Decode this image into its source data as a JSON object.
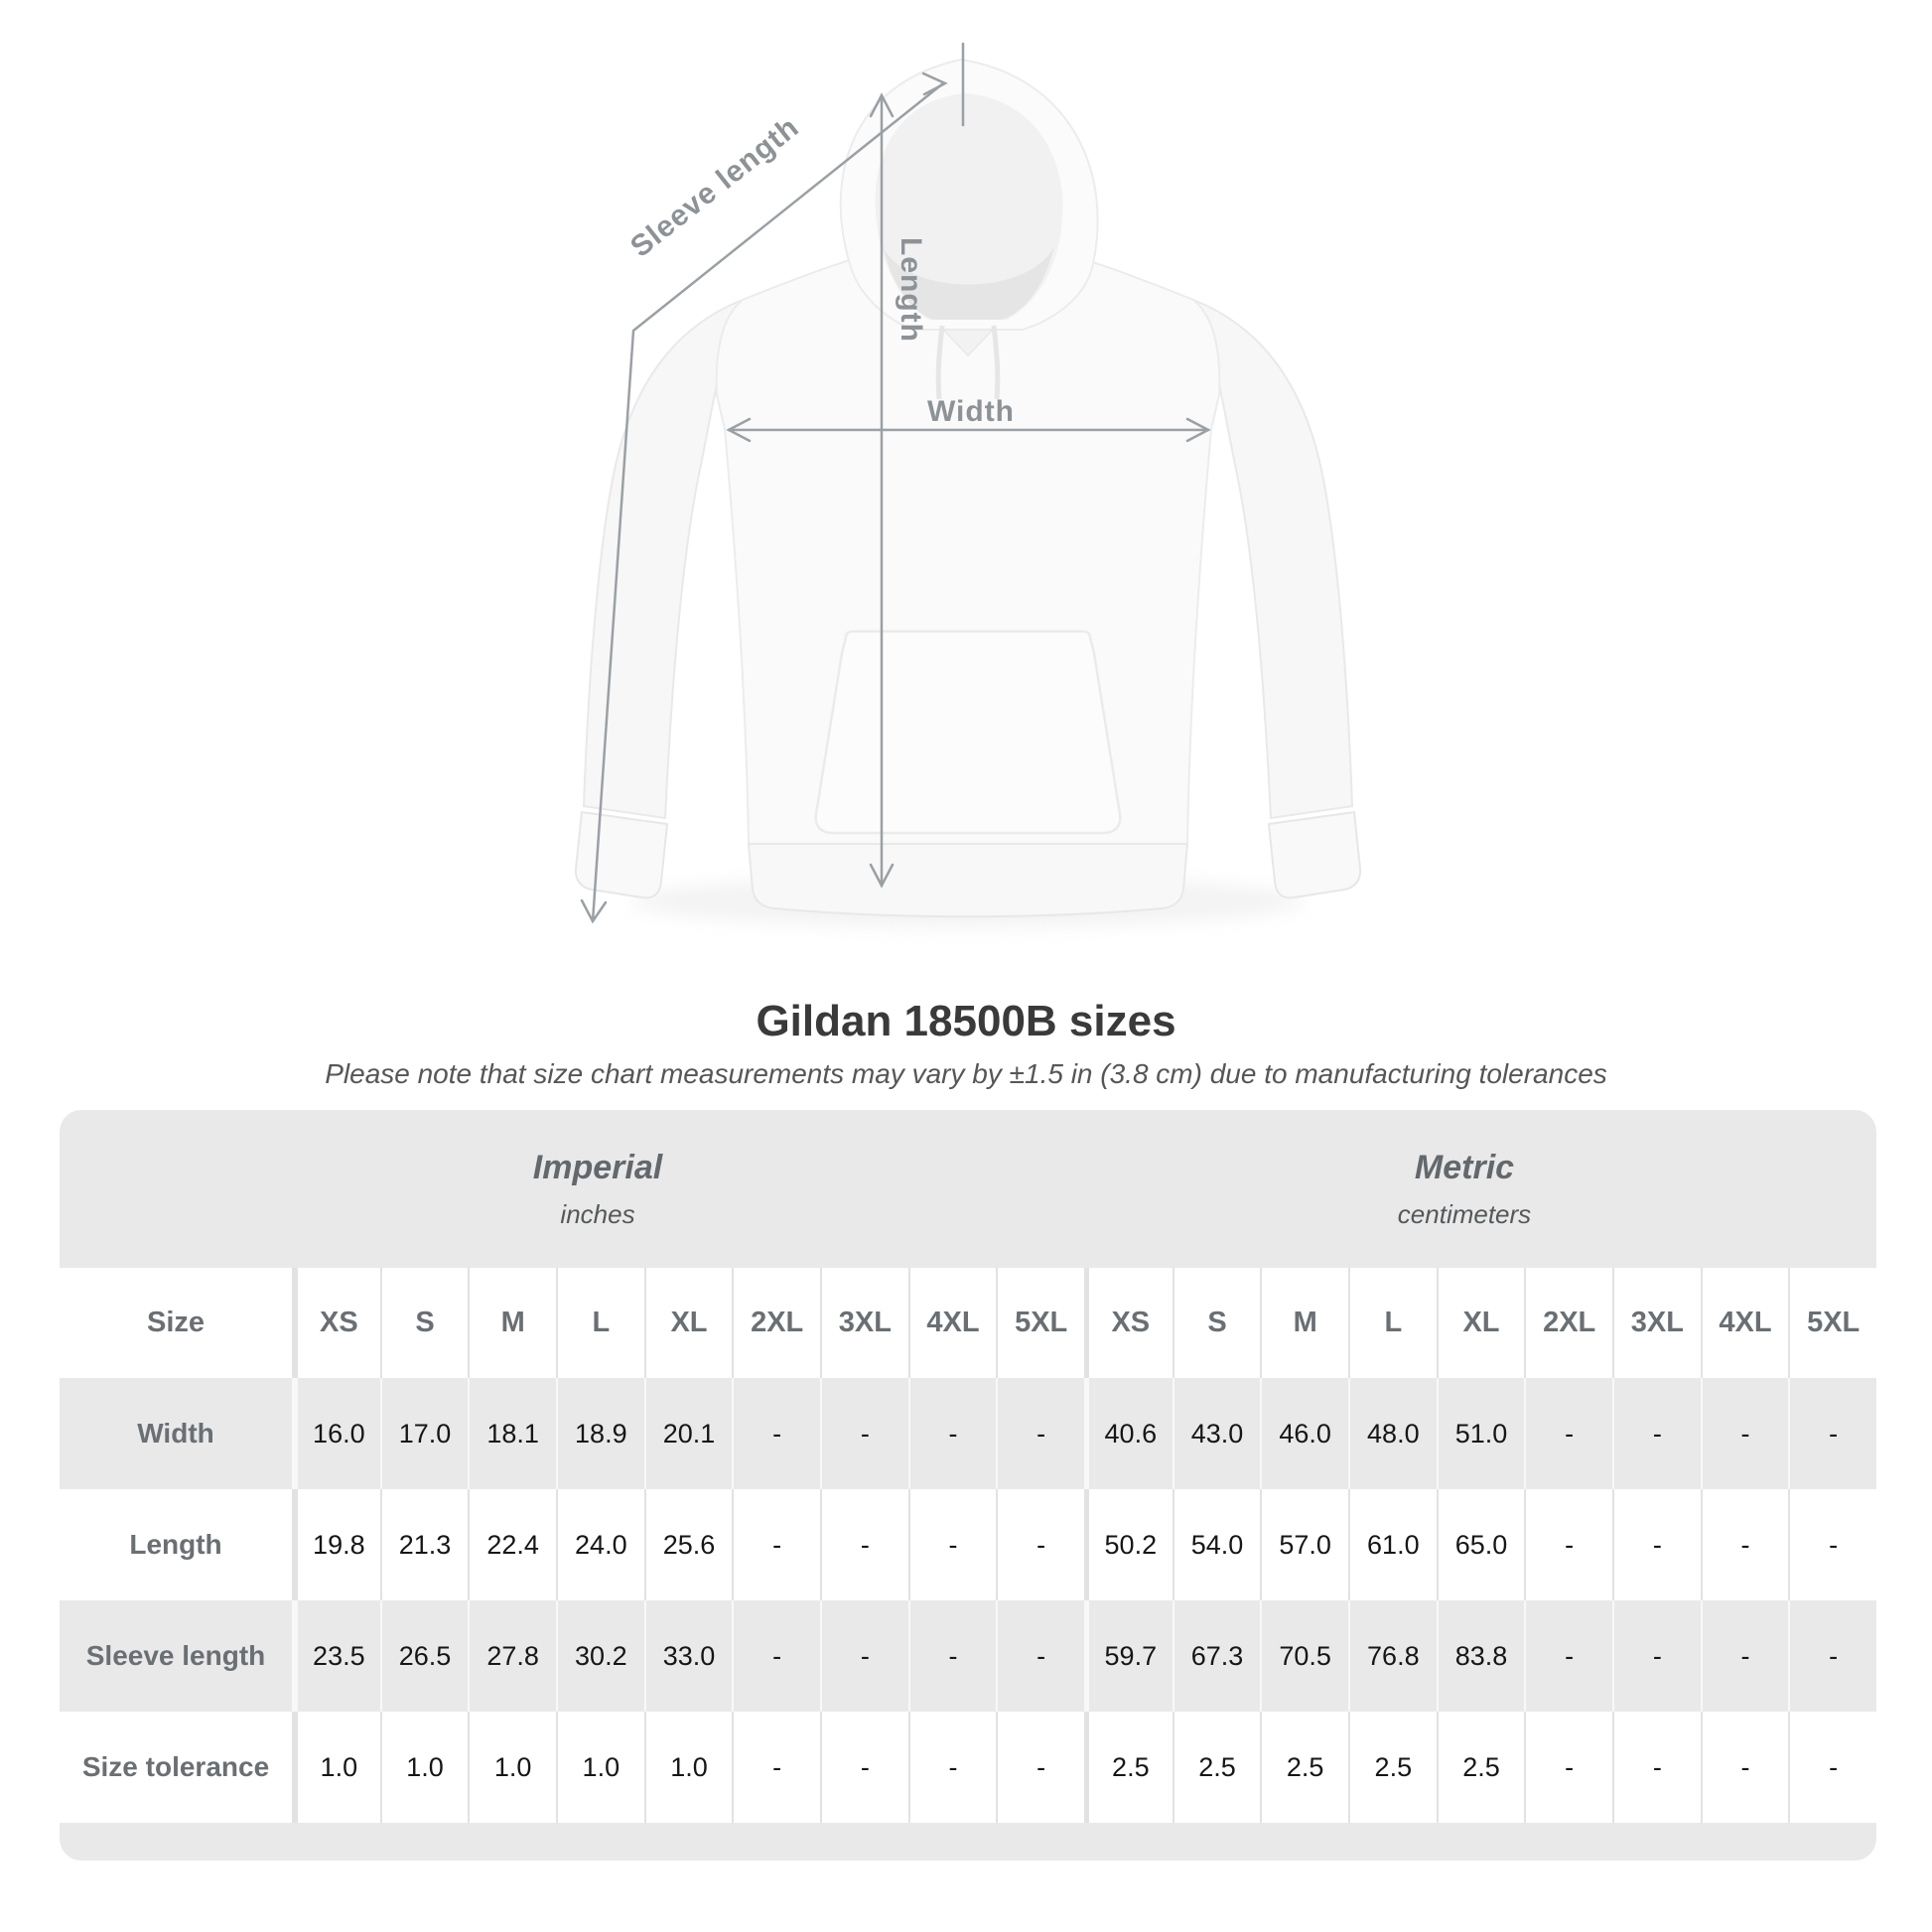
{
  "colors": {
    "row-gray": "#e9e9e9",
    "sep-on-light": "#e2e2e2",
    "sep-on-gray": "#f8f8f8",
    "text-dark": "#161616",
    "label-gray": "#6a6f73",
    "measure-line": "#9aa0a4",
    "measure-text": "#8d9296",
    "title-color": "#3a3a3a"
  },
  "diagram": {
    "sleeve_label": "Sleeve length",
    "length_label": "Length",
    "width_label": "Width"
  },
  "title": "Gildan 18500B sizes",
  "subtitle": "Please note that size chart measurements may vary by ±1.5 in (3.8 cm) due to manufacturing tolerances",
  "chart_data": {
    "type": "table",
    "title": "Gildan 18500B sizes",
    "note": "Please note that size chart measurements may vary by ±1.5 in (3.8 cm) due to manufacturing tolerances",
    "unit_groups": [
      {
        "label": "Imperial",
        "units": "inches"
      },
      {
        "label": "Metric",
        "units": "centimeters"
      }
    ],
    "corner_header": "Size",
    "sizes": [
      "XS",
      "S",
      "M",
      "L",
      "XL",
      "2XL",
      "3XL",
      "4XL",
      "5XL"
    ],
    "measurements": [
      {
        "label": "Width",
        "imperial": [
          "16.0",
          "17.0",
          "18.1",
          "18.9",
          "20.1",
          "-",
          "-",
          "-",
          "-"
        ],
        "metric": [
          "40.6",
          "43.0",
          "46.0",
          "48.0",
          "51.0",
          "-",
          "-",
          "-",
          "-"
        ]
      },
      {
        "label": "Length",
        "imperial": [
          "19.8",
          "21.3",
          "22.4",
          "24.0",
          "25.6",
          "-",
          "-",
          "-",
          "-"
        ],
        "metric": [
          "50.2",
          "54.0",
          "57.0",
          "61.0",
          "65.0",
          "-",
          "-",
          "-",
          "-"
        ]
      },
      {
        "label": "Sleeve length",
        "imperial": [
          "23.5",
          "26.5",
          "27.8",
          "30.2",
          "33.0",
          "-",
          "-",
          "-",
          "-"
        ],
        "metric": [
          "59.7",
          "67.3",
          "70.5",
          "76.8",
          "83.8",
          "-",
          "-",
          "-",
          "-"
        ]
      },
      {
        "label": "Size tolerance",
        "imperial": [
          "1.0",
          "1.0",
          "1.0",
          "1.0",
          "1.0",
          "-",
          "-",
          "-",
          "-"
        ],
        "metric": [
          "2.5",
          "2.5",
          "2.5",
          "2.5",
          "2.5",
          "-",
          "-",
          "-",
          "-"
        ]
      }
    ]
  }
}
